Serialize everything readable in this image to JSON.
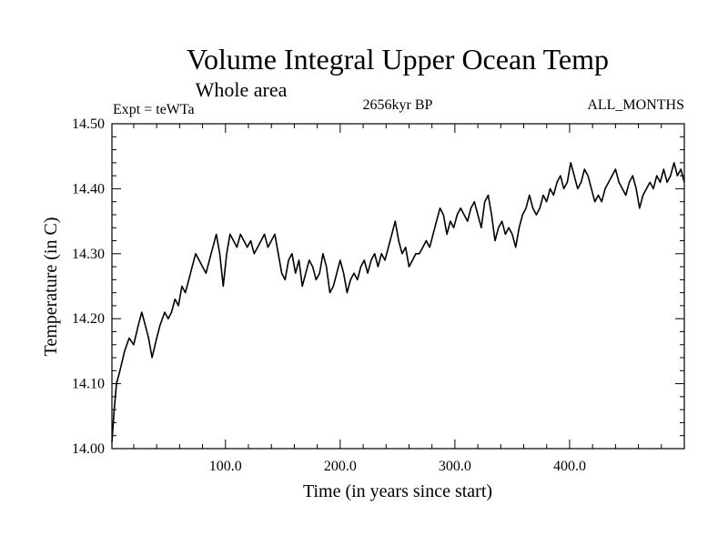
{
  "chart_data": {
    "type": "line",
    "title": "Volume Integral Upper Ocean Temp",
    "subtitle": "Whole area",
    "left_label": "Expt = teWTa",
    "center_label": "2656kyr BP",
    "right_label": "ALL_MONTHS",
    "xlabel": "Time (in years since start)",
    "ylabel": "Temperature (in C)",
    "xlim": [
      1,
      500
    ],
    "ylim": [
      14.0,
      14.5
    ],
    "xticks": [
      100,
      200,
      300,
      400
    ],
    "xtick_labels": [
      "100.0",
      "200.0",
      "300.0",
      "400.0"
    ],
    "yticks": [
      14.0,
      14.1,
      14.2,
      14.3,
      14.4,
      14.5
    ],
    "ytick_labels": [
      "14.00",
      "14.10",
      "14.20",
      "14.30",
      "14.40",
      "14.50"
    ],
    "grid": false,
    "line_color": "#000000",
    "series": [
      {
        "name": "Temperature",
        "x": [
          1,
          3,
          5,
          8,
          12,
          16,
          20,
          24,
          27,
          30,
          33,
          36,
          40,
          43,
          47,
          50,
          53,
          56,
          59,
          62,
          65,
          68,
          71,
          74,
          77,
          80,
          83,
          86,
          89,
          92,
          95,
          98,
          101,
          104,
          107,
          110,
          113,
          116,
          119,
          122,
          125,
          128,
          131,
          134,
          137,
          140,
          143,
          146,
          149,
          152,
          155,
          158,
          161,
          164,
          167,
          170,
          173,
          176,
          179,
          182,
          185,
          188,
          191,
          194,
          197,
          200,
          203,
          206,
          209,
          212,
          215,
          218,
          221,
          224,
          227,
          230,
          233,
          236,
          239,
          242,
          245,
          248,
          251,
          254,
          257,
          260,
          263,
          266,
          269,
          272,
          275,
          278,
          281,
          284,
          287,
          290,
          293,
          296,
          299,
          302,
          305,
          308,
          311,
          314,
          317,
          320,
          323,
          326,
          329,
          332,
          335,
          338,
          341,
          344,
          347,
          350,
          353,
          356,
          359,
          362,
          365,
          368,
          371,
          374,
          377,
          380,
          383,
          386,
          389,
          392,
          395,
          398,
          401,
          404,
          407,
          410,
          413,
          416,
          419,
          422,
          425,
          428,
          431,
          434,
          437,
          440,
          443,
          446,
          449,
          452,
          455,
          458,
          461,
          464,
          467,
          470,
          473,
          476,
          479,
          482,
          485,
          488,
          491,
          494,
          497,
          500
        ],
        "values": [
          14.01,
          14.06,
          14.1,
          14.12,
          14.15,
          14.17,
          14.16,
          14.19,
          14.21,
          14.19,
          14.17,
          14.14,
          14.17,
          14.19,
          14.21,
          14.2,
          14.21,
          14.23,
          14.22,
          14.25,
          14.24,
          14.26,
          14.28,
          14.3,
          14.29,
          14.28,
          14.27,
          14.29,
          14.31,
          14.33,
          14.3,
          14.25,
          14.3,
          14.33,
          14.32,
          14.31,
          14.33,
          14.32,
          14.31,
          14.32,
          14.3,
          14.31,
          14.32,
          14.33,
          14.31,
          14.32,
          14.33,
          14.3,
          14.27,
          14.26,
          14.29,
          14.3,
          14.27,
          14.29,
          14.25,
          14.27,
          14.29,
          14.28,
          14.26,
          14.27,
          14.3,
          14.28,
          14.24,
          14.25,
          14.27,
          14.29,
          14.27,
          14.24,
          14.26,
          14.27,
          14.26,
          14.28,
          14.29,
          14.27,
          14.29,
          14.3,
          14.28,
          14.3,
          14.29,
          14.31,
          14.33,
          14.35,
          14.32,
          14.3,
          14.31,
          14.28,
          14.29,
          14.3,
          14.3,
          14.31,
          14.32,
          14.31,
          14.33,
          14.35,
          14.37,
          14.36,
          14.33,
          14.35,
          14.34,
          14.36,
          14.37,
          14.36,
          14.35,
          14.37,
          14.38,
          14.36,
          14.34,
          14.38,
          14.39,
          14.36,
          14.32,
          14.34,
          14.35,
          14.33,
          14.34,
          14.33,
          14.31,
          14.34,
          14.36,
          14.37,
          14.39,
          14.37,
          14.36,
          14.37,
          14.39,
          14.38,
          14.4,
          14.39,
          14.41,
          14.42,
          14.4,
          14.41,
          14.44,
          14.42,
          14.4,
          14.41,
          14.43,
          14.42,
          14.4,
          14.38,
          14.39,
          14.38,
          14.4,
          14.41,
          14.42,
          14.43,
          14.41,
          14.4,
          14.39,
          14.41,
          14.42,
          14.4,
          14.37,
          14.39,
          14.4,
          14.41,
          14.4,
          14.42,
          14.41,
          14.43,
          14.41,
          14.42,
          14.44,
          14.42,
          14.43,
          14.41
        ]
      }
    ]
  }
}
